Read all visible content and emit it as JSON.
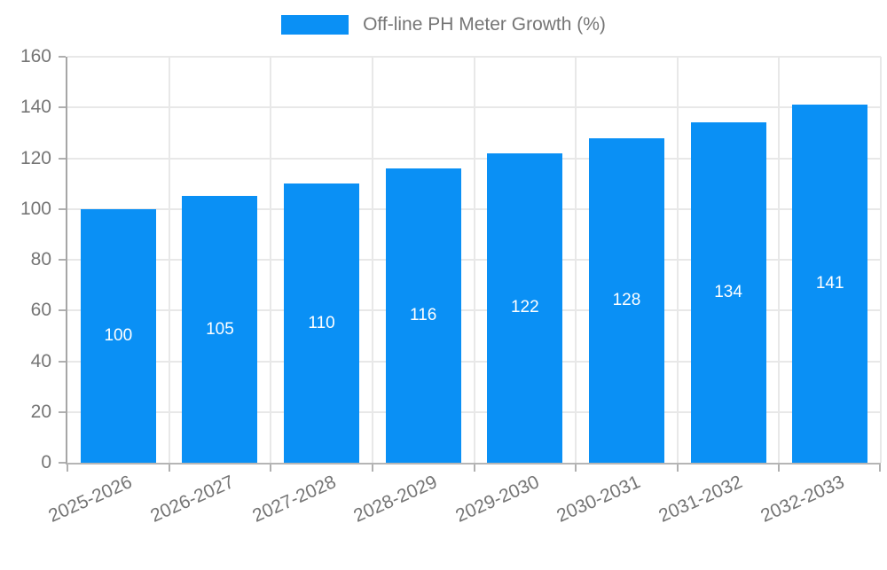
{
  "legend": {
    "label": "Off-line PH Meter Growth (%)"
  },
  "colors": {
    "bar": "#0a90f5",
    "y_axis_line": "#a6a6a6",
    "x_axis_line": "#b5b5b5",
    "gridline": "#e8e8e8",
    "tick": "#b0b0b0",
    "axis_text": "#757575",
    "bar_label_text": "#ffffff",
    "background": "#ffffff"
  },
  "chart_data": {
    "type": "bar",
    "title": "Off-line PH Meter Growth (%)",
    "categories": [
      "2025-2026",
      "2026-2027",
      "2027-2028",
      "2028-2029",
      "2029-2030",
      "2030-2031",
      "2031-2032",
      "2032-2033"
    ],
    "values": [
      100,
      105,
      110,
      116,
      122,
      128,
      134,
      141
    ],
    "xlabel": "",
    "ylabel": "",
    "ylim": [
      0,
      160
    ],
    "ytick_step": 20,
    "yticks": [
      0,
      20,
      40,
      60,
      80,
      100,
      120,
      140,
      160
    ],
    "grid": true,
    "legend_position": "top",
    "bar_labels_inside": "center",
    "x_label_rotation_deg": -24
  }
}
